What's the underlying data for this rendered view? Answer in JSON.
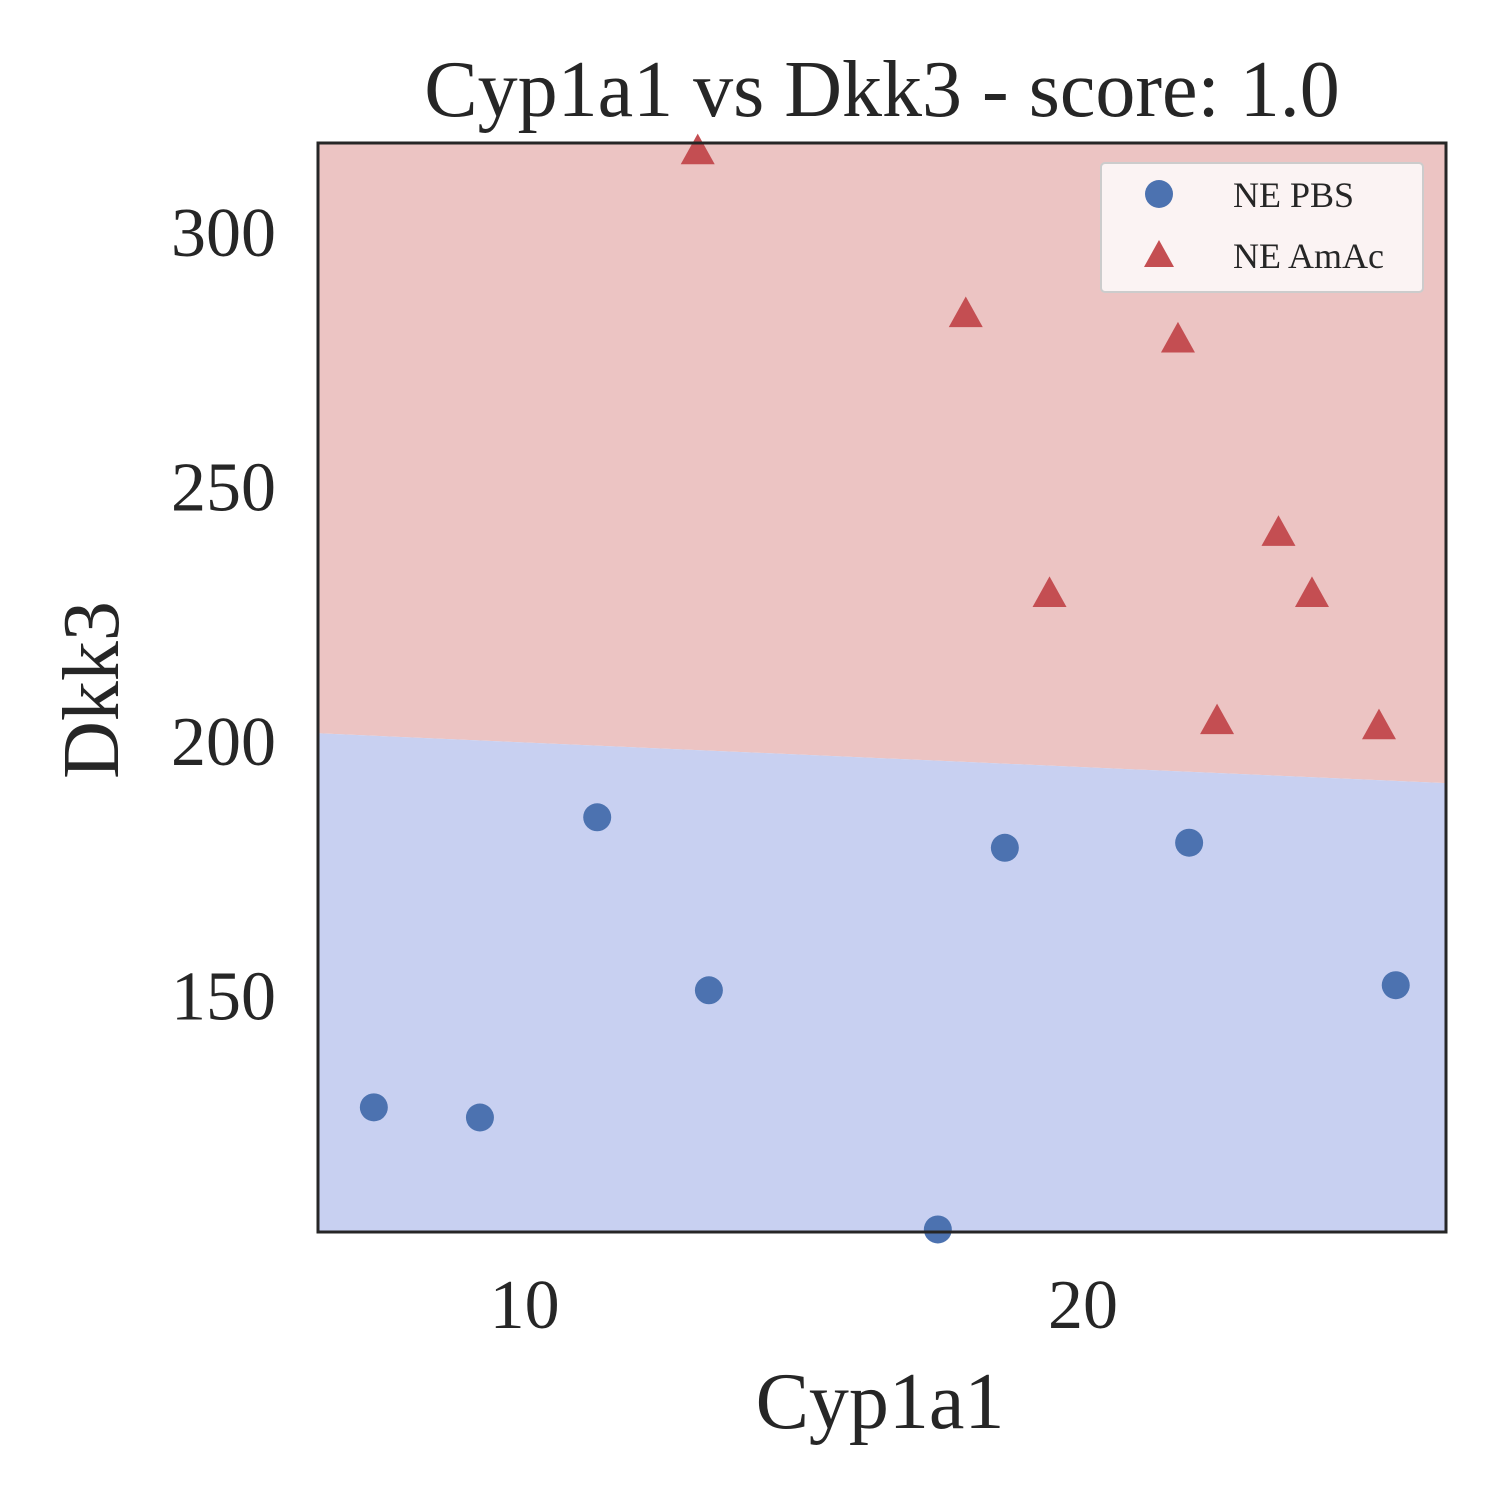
{
  "chart_data": {
    "type": "scatter",
    "title": "Cyp1a1 vs Dkk3 - score: 1.0",
    "xlabel": "Cyp1a1",
    "ylabel": "Dkk3",
    "xlim": [
      6.3,
      26.5
    ],
    "ylim": [
      103.5,
      317.5
    ],
    "xticks": [
      10,
      20
    ],
    "xtick_labels": [
      "10",
      "20"
    ],
    "yticks": [
      150,
      200,
      250,
      300
    ],
    "ytick_labels": [
      "150",
      "200",
      "250",
      "300"
    ],
    "grid": false,
    "legend_position": "top-right",
    "decision_boundary": {
      "x": [
        6.3,
        26.5
      ],
      "y": [
        201.5,
        191.7
      ]
    },
    "regions": [
      {
        "name": "NE PBS",
        "side": "below",
        "color": "#c8d0f1"
      },
      {
        "name": "NE AmAc",
        "side": "above",
        "color": "#ecc4c3"
      }
    ],
    "series": [
      {
        "name": "NE PBS",
        "marker": "circle",
        "color": "#4c72b0",
        "x": [
          7.3,
          9.2,
          11.3,
          13.3,
          17.4,
          18.6,
          21.9,
          25.6
        ],
        "y": [
          128,
          126,
          185,
          151,
          104,
          179,
          180,
          152
        ]
      },
      {
        "name": "NE AmAc",
        "marker": "triangle",
        "color": "#c44e52",
        "x": [
          13.1,
          17.9,
          19.4,
          21.7,
          22.4,
          23.5,
          24.1,
          25.3
        ],
        "y": [
          316,
          284,
          229,
          279,
          204,
          241,
          229,
          203
        ]
      }
    ]
  }
}
